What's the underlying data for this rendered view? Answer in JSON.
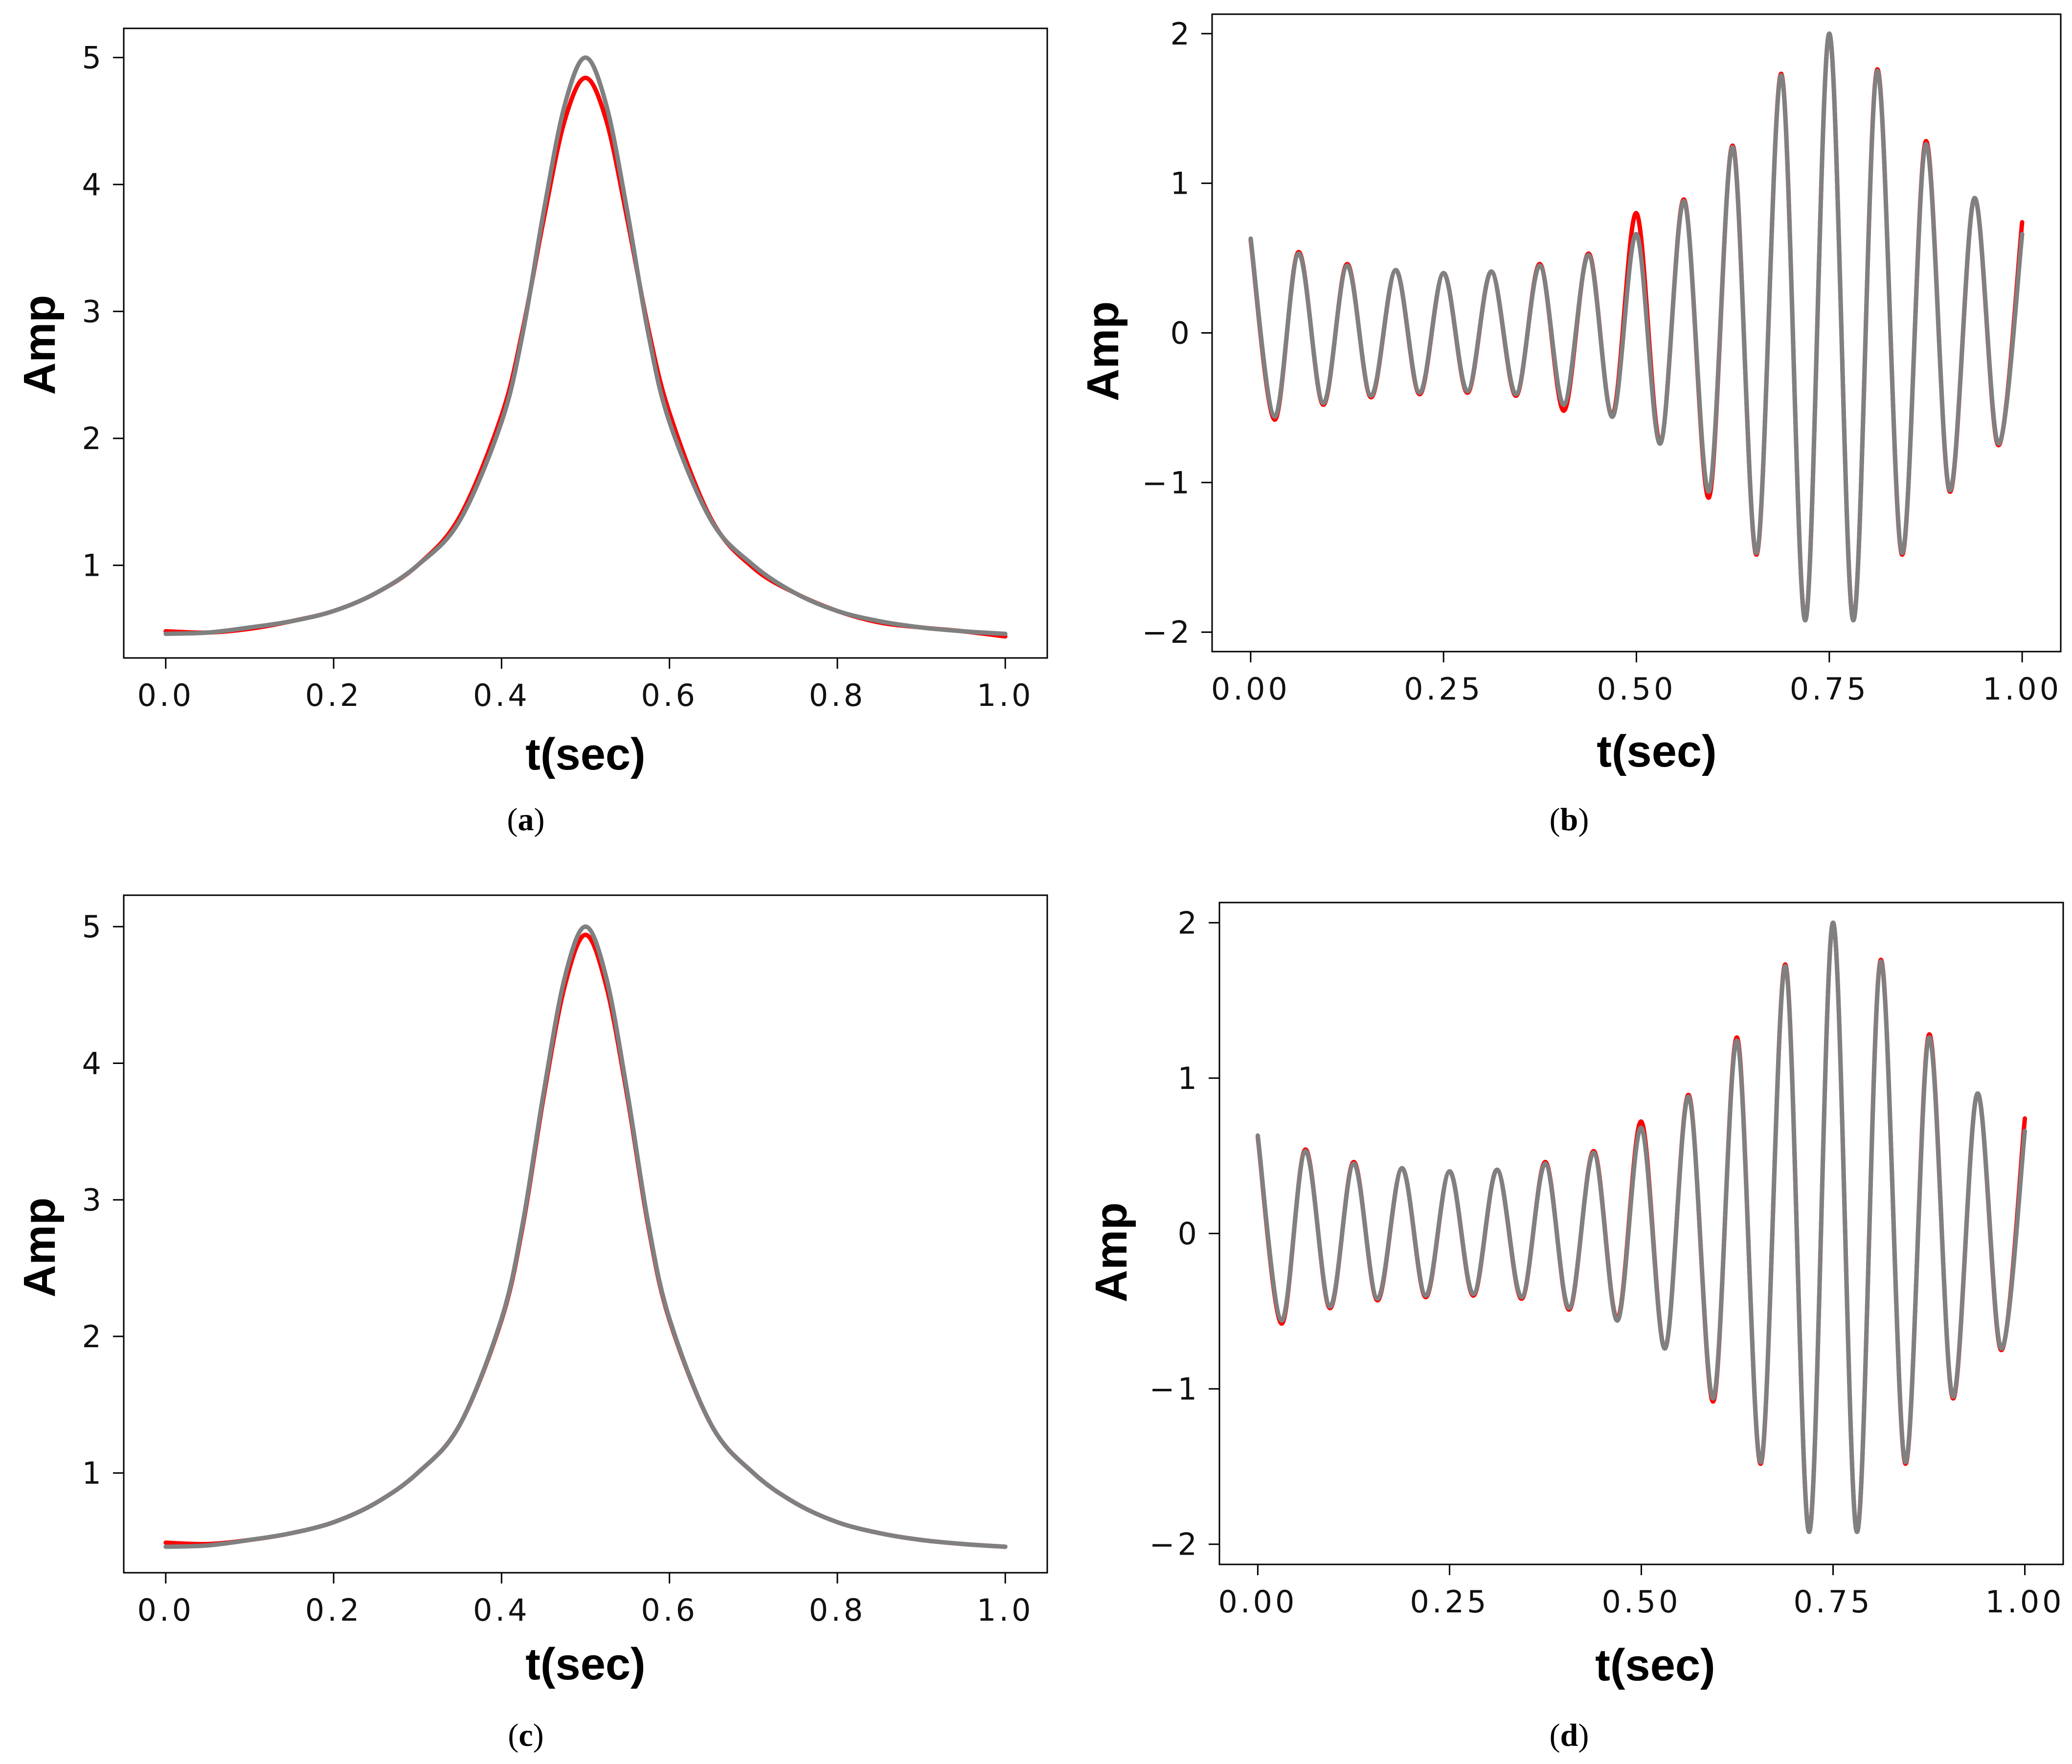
{
  "colors": {
    "red_series": "#ff0000",
    "gray_series": "#808080"
  },
  "chart_data": [
    {
      "id": "a",
      "type": "line",
      "caption": {
        "letter": "a",
        "text": "(a)"
      },
      "xlabel": "t(sec)",
      "ylabel": "Amp",
      "xlim": [
        -0.05,
        1.05
      ],
      "ylim": [
        0.27,
        5.23
      ],
      "xticks": [
        0.0,
        0.2,
        0.4,
        0.6,
        0.8,
        1.0
      ],
      "xtick_labels": [
        "0.0",
        "0.2",
        "0.4",
        "0.6",
        "0.8",
        "1.0"
      ],
      "yticks": [
        1,
        2,
        3,
        4,
        5
      ],
      "ytick_labels": [
        "1",
        "2",
        "3",
        "4",
        "5"
      ],
      "series": [
        {
          "name": "red",
          "color": "#ff0000",
          "x": [
            0,
            0.05,
            0.1,
            0.15,
            0.2,
            0.25,
            0.3,
            0.35,
            0.4,
            0.425,
            0.45,
            0.475,
            0.5,
            0.525,
            0.55,
            0.575,
            0.6,
            0.65,
            0.7,
            0.75,
            0.8,
            0.85,
            0.9,
            0.95,
            1.0
          ],
          "y": [
            0.48,
            0.47,
            0.5,
            0.56,
            0.64,
            0.78,
            1.0,
            1.38,
            2.18,
            2.85,
            3.72,
            4.5,
            4.84,
            4.5,
            3.72,
            2.86,
            2.2,
            1.36,
            0.98,
            0.78,
            0.64,
            0.55,
            0.51,
            0.48,
            0.44
          ]
        },
        {
          "name": "gray",
          "color": "#808080",
          "x": [
            0,
            0.05,
            0.1,
            0.15,
            0.2,
            0.25,
            0.3,
            0.35,
            0.4,
            0.425,
            0.45,
            0.475,
            0.5,
            0.525,
            0.55,
            0.575,
            0.6,
            0.65,
            0.7,
            0.75,
            0.8,
            0.85,
            0.9,
            0.95,
            1.0
          ],
          "y": [
            0.46,
            0.47,
            0.51,
            0.56,
            0.64,
            0.78,
            1.0,
            1.35,
            2.13,
            2.82,
            3.78,
            4.62,
            5.0,
            4.62,
            3.78,
            2.82,
            2.13,
            1.35,
            1.0,
            0.78,
            0.64,
            0.56,
            0.51,
            0.48,
            0.46
          ]
        }
      ]
    },
    {
      "id": "b",
      "type": "line",
      "caption": {
        "letter": "b",
        "text": "(b)"
      },
      "xlabel": "t(sec)",
      "ylabel": "Amp",
      "xlim": [
        -0.05,
        1.05
      ],
      "ylim": [
        -2.13,
        2.13
      ],
      "xticks": [
        0.0,
        0.25,
        0.5,
        0.75,
        1.0
      ],
      "xtick_labels": [
        "0.00",
        "0.25",
        "0.50",
        "0.75",
        "1.00"
      ],
      "yticks": [
        -2,
        -1,
        0,
        1,
        2
      ],
      "ytick_labels": [
        "−2",
        "−1",
        "0",
        "1",
        "2"
      ],
      "series": [
        {
          "name": "red",
          "color": "#ff0000",
          "x": [
            0,
            0.031,
            0.062,
            0.094,
            0.125,
            0.156,
            0.188,
            0.219,
            0.25,
            0.281,
            0.312,
            0.344,
            0.375,
            0.406,
            0.438,
            0.469,
            0.5,
            0.531,
            0.562,
            0.594,
            0.625,
            0.656,
            0.688,
            0.719,
            0.75,
            0.781,
            0.812,
            0.844,
            0.875,
            0.906,
            0.938,
            0.969,
            1.0
          ],
          "y": [
            0.62,
            -0.58,
            0.54,
            -0.48,
            0.46,
            -0.43,
            0.42,
            -0.41,
            0.4,
            -0.4,
            0.41,
            -0.42,
            0.46,
            -0.52,
            0.53,
            -0.55,
            0.8,
            -0.73,
            0.89,
            -1.1,
            1.25,
            -1.48,
            1.73,
            -1.92,
            2.0,
            -1.92,
            1.76,
            -1.48,
            1.28,
            -1.06,
            0.9,
            -0.75,
            0.74
          ]
        },
        {
          "name": "gray",
          "color": "#808080",
          "x": [
            0,
            0.031,
            0.062,
            0.094,
            0.125,
            0.156,
            0.188,
            0.219,
            0.25,
            0.281,
            0.312,
            0.344,
            0.375,
            0.406,
            0.438,
            0.469,
            0.5,
            0.531,
            0.562,
            0.594,
            0.625,
            0.656,
            0.688,
            0.719,
            0.75,
            0.781,
            0.812,
            0.844,
            0.875,
            0.906,
            0.938,
            0.969,
            1.0
          ],
          "y": [
            0.63,
            -0.56,
            0.53,
            -0.47,
            0.45,
            -0.42,
            0.42,
            -0.4,
            0.4,
            -0.39,
            0.41,
            -0.41,
            0.45,
            -0.48,
            0.52,
            -0.56,
            0.66,
            -0.74,
            0.88,
            -1.06,
            1.24,
            -1.47,
            1.72,
            -1.92,
            2.0,
            -1.92,
            1.75,
            -1.47,
            1.26,
            -1.05,
            0.9,
            -0.74,
            0.66
          ]
        }
      ]
    },
    {
      "id": "c",
      "type": "line",
      "caption": {
        "letter": "c",
        "text": "(c)"
      },
      "xlabel": "t(sec)",
      "ylabel": "Amp",
      "xlim": [
        -0.05,
        1.05
      ],
      "ylim": [
        0.27,
        5.23
      ],
      "xticks": [
        0.0,
        0.2,
        0.4,
        0.6,
        0.8,
        1.0
      ],
      "xtick_labels": [
        "0.0",
        "0.2",
        "0.4",
        "0.6",
        "0.8",
        "1.0"
      ],
      "yticks": [
        1,
        2,
        3,
        4,
        5
      ],
      "ytick_labels": [
        "1",
        "2",
        "3",
        "4",
        "5"
      ],
      "series": [
        {
          "name": "red",
          "color": "#ff0000",
          "x": [
            0,
            0.05,
            0.1,
            0.15,
            0.2,
            0.25,
            0.3,
            0.35,
            0.4,
            0.425,
            0.45,
            0.475,
            0.5,
            0.525,
            0.55,
            0.575,
            0.6,
            0.65,
            0.7,
            0.75,
            0.8,
            0.85,
            0.9,
            0.95,
            1.0
          ],
          "y": [
            0.49,
            0.48,
            0.51,
            0.56,
            0.64,
            0.78,
            1.0,
            1.35,
            2.12,
            2.8,
            3.75,
            4.56,
            4.94,
            4.56,
            3.75,
            2.8,
            2.12,
            1.35,
            1.0,
            0.78,
            0.64,
            0.56,
            0.51,
            0.48,
            0.46
          ]
        },
        {
          "name": "gray",
          "color": "#808080",
          "x": [
            0,
            0.05,
            0.1,
            0.15,
            0.2,
            0.25,
            0.3,
            0.35,
            0.4,
            0.425,
            0.45,
            0.475,
            0.5,
            0.525,
            0.55,
            0.575,
            0.6,
            0.65,
            0.7,
            0.75,
            0.8,
            0.85,
            0.9,
            0.95,
            1.0
          ],
          "y": [
            0.46,
            0.47,
            0.51,
            0.56,
            0.64,
            0.78,
            1.0,
            1.35,
            2.13,
            2.82,
            3.78,
            4.62,
            5.0,
            4.62,
            3.78,
            2.82,
            2.13,
            1.35,
            1.0,
            0.78,
            0.64,
            0.56,
            0.51,
            0.48,
            0.46
          ]
        }
      ]
    },
    {
      "id": "d",
      "type": "line",
      "caption": {
        "letter": "d",
        "text": "(d)"
      },
      "xlabel": "t(sec)",
      "ylabel": "Amp",
      "xlim": [
        -0.05,
        1.05
      ],
      "ylim": [
        -2.13,
        2.13
      ],
      "xticks": [
        0.0,
        0.25,
        0.5,
        0.75,
        1.0
      ],
      "xtick_labels": [
        "0.00",
        "0.25",
        "0.50",
        "0.75",
        "1.00"
      ],
      "yticks": [
        -2,
        -1,
        0,
        1,
        2
      ],
      "ytick_labels": [
        "−2",
        "−1",
        "0",
        "1",
        "2"
      ],
      "series": [
        {
          "name": "red",
          "color": "#ff0000",
          "x": [
            0,
            0.031,
            0.062,
            0.094,
            0.125,
            0.156,
            0.188,
            0.219,
            0.25,
            0.281,
            0.312,
            0.344,
            0.375,
            0.406,
            0.438,
            0.469,
            0.5,
            0.531,
            0.562,
            0.594,
            0.625,
            0.656,
            0.688,
            0.719,
            0.75,
            0.781,
            0.812,
            0.844,
            0.875,
            0.906,
            0.938,
            0.969,
            1.0
          ],
          "y": [
            0.62,
            -0.58,
            0.54,
            -0.48,
            0.46,
            -0.43,
            0.42,
            -0.41,
            0.4,
            -0.4,
            0.41,
            -0.42,
            0.46,
            -0.49,
            0.53,
            -0.55,
            0.72,
            -0.74,
            0.89,
            -1.08,
            1.26,
            -1.48,
            1.73,
            -1.92,
            2.0,
            -1.92,
            1.76,
            -1.48,
            1.28,
            -1.06,
            0.9,
            -0.75,
            0.74
          ]
        },
        {
          "name": "gray",
          "color": "#808080",
          "x": [
            0,
            0.031,
            0.062,
            0.094,
            0.125,
            0.156,
            0.188,
            0.219,
            0.25,
            0.281,
            0.312,
            0.344,
            0.375,
            0.406,
            0.438,
            0.469,
            0.5,
            0.531,
            0.562,
            0.594,
            0.625,
            0.656,
            0.688,
            0.719,
            0.75,
            0.781,
            0.812,
            0.844,
            0.875,
            0.906,
            0.938,
            0.969,
            1.0
          ],
          "y": [
            0.63,
            -0.56,
            0.53,
            -0.47,
            0.45,
            -0.42,
            0.42,
            -0.4,
            0.4,
            -0.39,
            0.41,
            -0.41,
            0.45,
            -0.48,
            0.52,
            -0.56,
            0.68,
            -0.74,
            0.88,
            -1.06,
            1.24,
            -1.47,
            1.72,
            -1.92,
            2.0,
            -1.92,
            1.75,
            -1.47,
            1.26,
            -1.05,
            0.9,
            -0.74,
            0.66
          ]
        }
      ]
    }
  ]
}
